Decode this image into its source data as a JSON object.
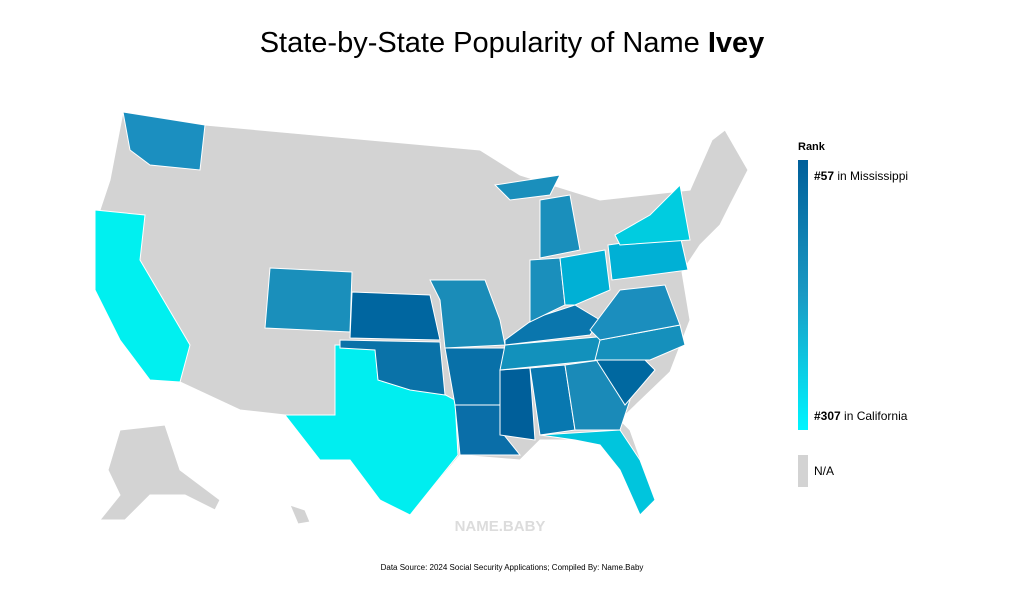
{
  "header": {
    "title": "State-by-State Popularity of Name",
    "name": "Ivey"
  },
  "legend": {
    "title": "Rank",
    "top": {
      "rank": "#57",
      "place": "in Mississippi"
    },
    "bottom": {
      "rank": "#307",
      "place": "in California"
    },
    "na": "N/A"
  },
  "watermark": "NAME.BABY",
  "source": "Data Source: 2024 Social Security Applications; Compiled By: Name.Baby"
}
